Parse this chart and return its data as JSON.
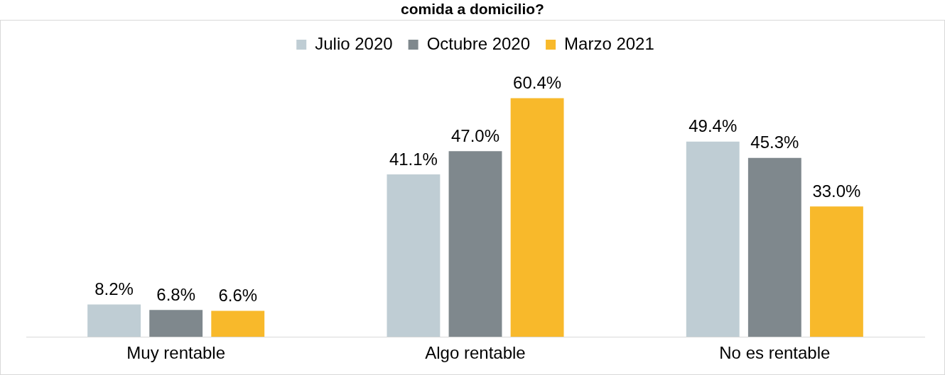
{
  "chart_data": {
    "type": "bar",
    "title": "comida a domicilio?",
    "categories": [
      "Muy rentable",
      "Algo rentable",
      "No es rentable"
    ],
    "series": [
      {
        "name": "Julio 2020",
        "color": "#bfcdd4",
        "values": [
          8.2,
          41.1,
          49.4
        ],
        "value_labels": [
          "8.2%",
          "41.1%",
          "49.4%"
        ]
      },
      {
        "name": "Octubre 2020",
        "color": "#7f888d",
        "values": [
          6.8,
          47.0,
          45.3
        ],
        "value_labels": [
          "6.8%",
          "47.0%",
          "45.3%"
        ]
      },
      {
        "name": "Marzo 2021",
        "color": "#f8b92b",
        "values": [
          6.6,
          60.4,
          33.0
        ],
        "value_labels": [
          "6.6%",
          "60.4%",
          "33.0%"
        ]
      }
    ],
    "legend": "top",
    "grid": false
  }
}
